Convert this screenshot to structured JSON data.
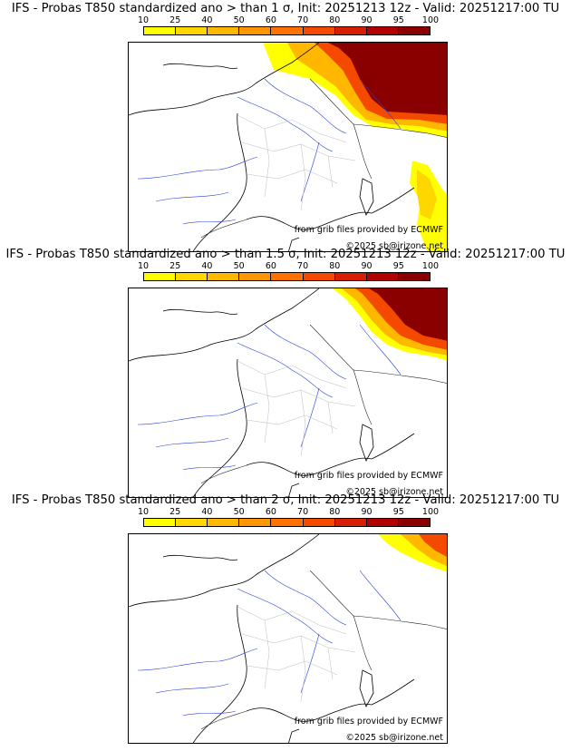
{
  "legend": {
    "ticks": [
      "10",
      "25",
      "40",
      "50",
      "60",
      "70",
      "80",
      "90",
      "95",
      "100"
    ],
    "colors": [
      "#ffff00",
      "#ffd700",
      "#ffb700",
      "#ff9500",
      "#ff7200",
      "#f44a00",
      "#d61e00",
      "#b00000",
      "#8a0000"
    ]
  },
  "panels": [
    {
      "title": "IFS - Probas T850  standardized ano > than 1 σ, Init: 20251213 12z - Valid: 20251217:00 TU",
      "source_credit": "from grib files provided by ECMWF",
      "copyright": "©2025 sb@irizone.net"
    },
    {
      "title": "IFS - Probas T850  standardized ano > than 1.5 σ, Init: 20251213 12z - Valid: 20251217:00 TU",
      "source_credit": "from grib files provided by ECMWF",
      "copyright": "©2025 sb@irizone.net"
    },
    {
      "title": "IFS - Probas T850  standardized ano > than 2 σ, Init: 20251213 12z - Valid: 20251217:00 TU",
      "source_credit": "from grib files provided by ECMWF",
      "copyright": "©2025 sb@irizone.net"
    }
  ]
}
